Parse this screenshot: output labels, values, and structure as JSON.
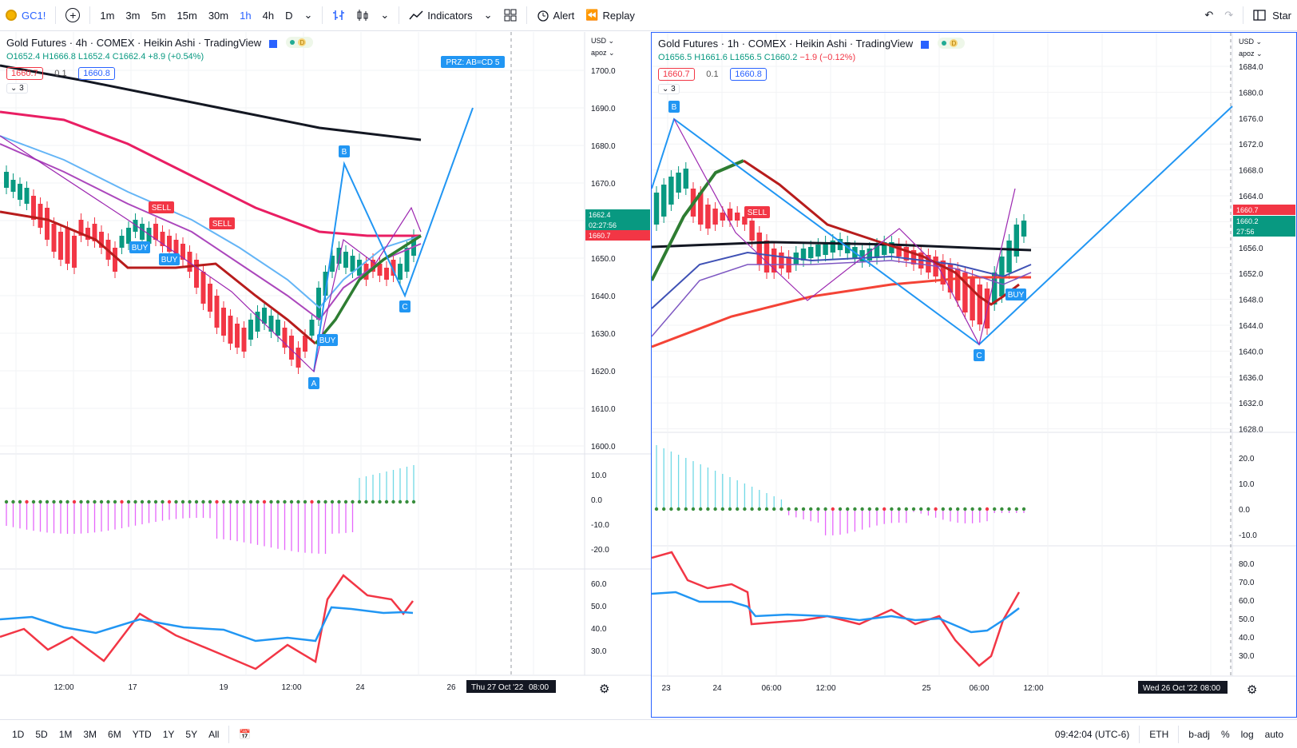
{
  "toolbar": {
    "symbol": "GC1!",
    "intervals": [
      "1m",
      "3m",
      "5m",
      "15m",
      "30m",
      "1h",
      "4h",
      "D"
    ],
    "active_interval": "1h",
    "indicators_label": "Indicators",
    "alert_label": "Alert",
    "replay_label": "Replay",
    "right_partial": "Star"
  },
  "colors": {
    "up": "#089981",
    "down": "#f23645",
    "accent": "#2962ff",
    "pattern": "#2196f3"
  },
  "left": {
    "title": "Gold Futures · 4h · COMEX · Heikin Ashi · TradingView",
    "ohlc": {
      "o": "O1652.4",
      "h": "H1666.8",
      "l": "L1652.4",
      "c": "C1662.4",
      "chg": "+8.9 (+0.54%)"
    },
    "sell_price": "1660.7",
    "spread": "0.1",
    "buy_price": "1660.8",
    "collapse_count": "3",
    "currency": "USD",
    "scale_mode": "apoz",
    "price_ticks": [
      "1700.0",
      "1690.0",
      "1680.0",
      "1670.0",
      "1660.0",
      "1650.0",
      "1640.0",
      "1630.0",
      "1620.0",
      "1610.0",
      "1600.0"
    ],
    "price_label_last": "1662.4",
    "price_label_timer": "02:27:56",
    "price_label_sell": "1660.7",
    "osc_ticks": [
      "10.0",
      "0.0",
      "-10.0",
      "-20.0"
    ],
    "rsi_ticks": [
      "60.0",
      "50.0",
      "40.0",
      "30.0"
    ],
    "time_ticks": [
      "12:00",
      "17",
      "19",
      "12:00",
      "24",
      "26"
    ],
    "crosshair_time": "Thu 27 Oct '22",
    "crosshair_hour": "08:00",
    "pattern_labels": {
      "a": "A",
      "b": "B",
      "c": "C"
    },
    "przlabel": "PRZ: AB=CD 5",
    "signal_labels": [
      "SELL",
      "SELL",
      "BUY",
      "BUY",
      "BUY"
    ]
  },
  "right": {
    "title": "Gold Futures · 1h · COMEX · Heikin Ashi · TradingView",
    "ohlc": {
      "o": "O1656.5",
      "h": "H1661.6",
      "l": "L1656.5",
      "c": "C1660.2",
      "chg": "−1.9 (−0.12%)"
    },
    "sell_price": "1660.7",
    "spread": "0.1",
    "buy_price": "1660.8",
    "collapse_count": "3",
    "currency": "USD",
    "scale_mode": "apoz",
    "price_ticks": [
      "1684.0",
      "1680.0",
      "1676.0",
      "1672.0",
      "1668.0",
      "1664.0",
      "1660.0",
      "1656.0",
      "1652.0",
      "1648.0",
      "1644.0",
      "1640.0",
      "1636.0",
      "1632.0",
      "1628.0"
    ],
    "price_label_sell": "1660.7",
    "price_label_last": "1660.2",
    "price_label_timer": "27:56",
    "osc_ticks": [
      "20.0",
      "10.0",
      "0.0",
      "-10.0"
    ],
    "rsi_ticks": [
      "80.0",
      "70.0",
      "60.0",
      "50.0",
      "40.0",
      "30.0"
    ],
    "time_ticks": [
      "23",
      "24",
      "06:00",
      "12:00",
      "25",
      "06:00",
      "12:00"
    ],
    "crosshair_time": "Wed 26 Oct '22",
    "crosshair_hour": "08:00",
    "pattern_labels": {
      "b": "B",
      "c": "C"
    },
    "signal_labels": [
      "SELL",
      "BUY"
    ]
  },
  "bottom": {
    "ranges": [
      "1D",
      "5D",
      "1M",
      "3M",
      "6M",
      "YTD",
      "1Y",
      "5Y",
      "All"
    ],
    "clock": "09:42:04 (UTC-6)",
    "session": "ETH",
    "adj": "b-adj",
    "pct": "%",
    "log": "log",
    "auto": "auto"
  }
}
